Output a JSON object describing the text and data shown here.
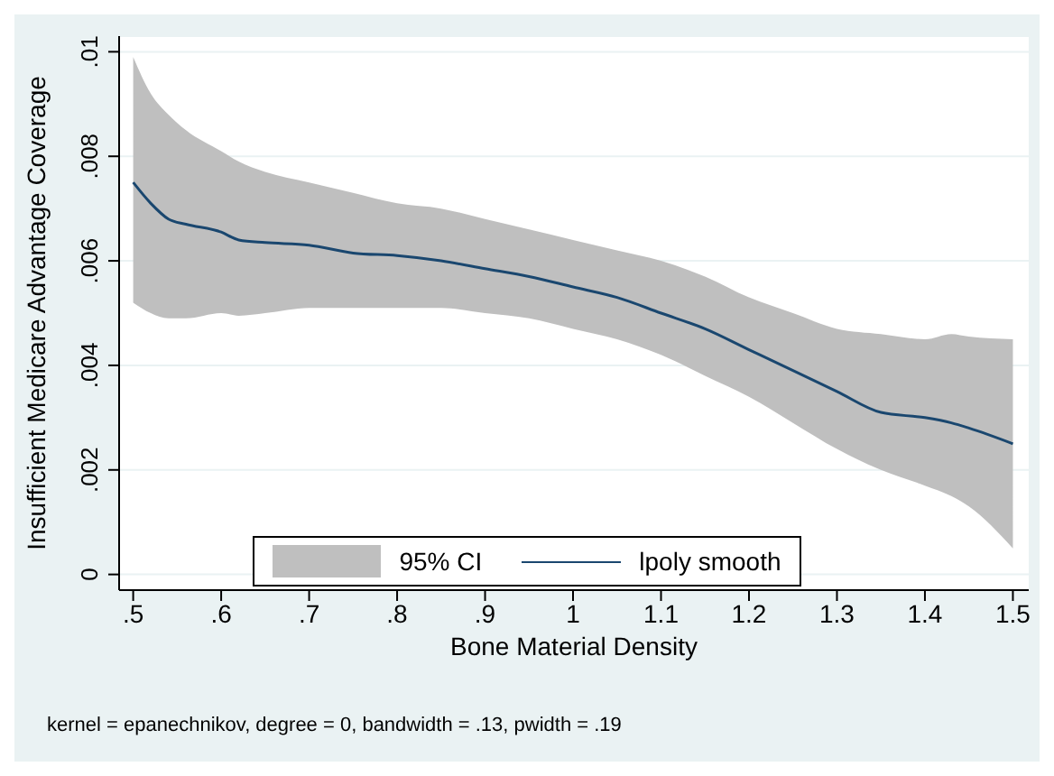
{
  "chart_data": {
    "type": "line",
    "xlabel": "Bone Material Density",
    "ylabel": "Insufficient Medicare Advantage Coverage",
    "annotations": [
      "kernel = epanechnikov, degree = 0, bandwidth = .13, pwidth = .19"
    ],
    "x": [
      0.5,
      0.52,
      0.54,
      0.56,
      0.6,
      0.62,
      0.65,
      0.7,
      0.75,
      0.8,
      0.85,
      0.9,
      0.95,
      1.0,
      1.05,
      1.1,
      1.15,
      1.2,
      1.25,
      1.3,
      1.35,
      1.4,
      1.43,
      1.45,
      1.5
    ],
    "series": [
      {
        "name": "95% CI",
        "type": "area",
        "color": "#bfbfbf",
        "values": [
          null,
          null,
          null,
          null,
          null,
          null,
          null,
          null,
          null,
          null,
          null,
          null,
          null,
          null,
          null,
          null,
          null,
          null,
          null,
          null,
          null,
          null,
          null,
          null,
          null
        ],
        "upper": [
          0.0099,
          0.0092,
          0.0088,
          0.0085,
          0.0081,
          0.0079,
          0.0077,
          0.0075,
          0.0073,
          0.0071,
          0.007,
          0.0068,
          0.0066,
          0.0064,
          0.0062,
          0.006,
          0.0057,
          0.0053,
          0.005,
          0.0047,
          0.0046,
          0.0045,
          0.0046,
          0.00455,
          0.0045
        ],
        "lower": [
          0.0052,
          0.005,
          0.0049,
          0.0049,
          0.005,
          0.00495,
          0.005,
          0.0051,
          0.0051,
          0.0051,
          0.0051,
          0.005,
          0.0049,
          0.0047,
          0.0045,
          0.0042,
          0.0038,
          0.0034,
          0.0029,
          0.0024,
          0.002,
          0.0017,
          0.0015,
          0.0013,
          0.0005
        ]
      },
      {
        "name": "lpoly smooth",
        "color": "#1a476f",
        "values": [
          0.0075,
          0.0071,
          0.0068,
          0.0067,
          0.00655,
          0.0064,
          0.00635,
          0.0063,
          0.00615,
          0.0061,
          0.006,
          0.00585,
          0.0057,
          0.0055,
          0.0053,
          0.005,
          0.0047,
          0.0043,
          0.0039,
          0.0035,
          0.0031,
          0.003,
          0.0029,
          0.0028,
          0.0025
        ]
      }
    ],
    "xlim": [
      0.484,
      1.518
    ],
    "xticks": [
      {
        "value": 0.5,
        "label": ".5"
      },
      {
        "value": 0.6,
        "label": ".6"
      },
      {
        "value": 0.7,
        "label": ".7"
      },
      {
        "value": 0.8,
        "label": ".8"
      },
      {
        "value": 0.9,
        "label": ".9"
      },
      1,
      {
        "value": 1.1,
        "label": "1.1"
      },
      {
        "value": 1.2,
        "label": "1.2"
      },
      {
        "value": 1.3,
        "label": "1.3"
      },
      {
        "value": 1.4,
        "label": "1.4"
      },
      {
        "value": 1.5,
        "label": "1.5"
      }
    ],
    "ylim": [
      -0.0003,
      0.0103
    ],
    "yticks": [
      0,
      {
        "value": 0.002,
        "label": ".002"
      },
      {
        "value": 0.004,
        "label": ".004"
      },
      {
        "value": 0.006,
        "label": ".006"
      },
      {
        "value": 0.008,
        "label": ".008"
      },
      {
        "value": 0.01,
        "label": ".01"
      }
    ],
    "grid": "y",
    "legend": "bottom",
    "marker": "none",
    "line_style": "solid"
  }
}
